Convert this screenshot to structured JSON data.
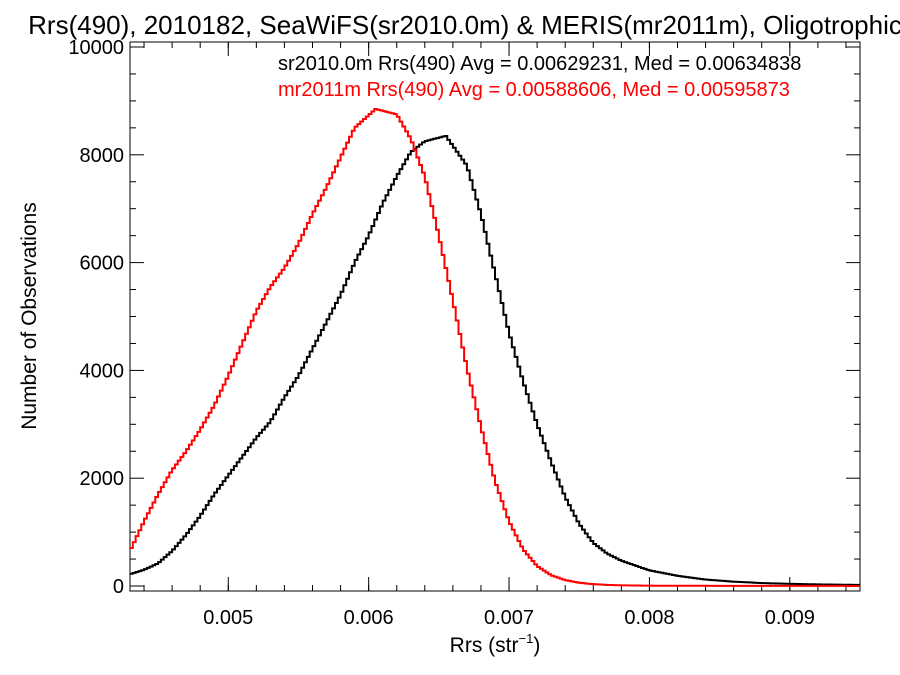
{
  "chart_data": {
    "type": "line",
    "title": "Rrs(490), 2010182, SeaWiFS(sr2010.0m) & MERIS(mr2011m), Oligotrophic",
    "xlabel": "Rrs (str",
    "xlabel_sup": "−1",
    "xlabel_close": ")",
    "ylabel": "Number of Observations",
    "xlim": [
      0.0043,
      0.0095
    ],
    "ylim": [
      0,
      10000
    ],
    "xticks": [
      {
        "value": 0.005,
        "label": "0.005"
      },
      {
        "value": 0.006,
        "label": "0.006"
      },
      {
        "value": 0.007,
        "label": "0.007"
      },
      {
        "value": 0.008,
        "label": "0.008"
      },
      {
        "value": 0.009,
        "label": "0.009"
      }
    ],
    "yticks": [
      {
        "value": 0,
        "label": "0"
      },
      {
        "value": 2000,
        "label": "2000"
      },
      {
        "value": 4000,
        "label": "4000"
      },
      {
        "value": 6000,
        "label": "6000"
      },
      {
        "value": 8000,
        "label": "8000"
      },
      {
        "value": 10000,
        "label": "10000"
      }
    ],
    "grid": false,
    "series": [
      {
        "name": "sr2010.0m",
        "color": "#000000",
        "legend_label": "sr2010.0m Rrs(490) Avg = 0.00629231, Med = 0.00634838",
        "points": [
          [
            0.0043,
            220
          ],
          [
            0.0044,
            300
          ],
          [
            0.0045,
            420
          ],
          [
            0.0046,
            650
          ],
          [
            0.0047,
            950
          ],
          [
            0.0048,
            1300
          ],
          [
            0.0049,
            1700
          ],
          [
            0.005,
            2050
          ],
          [
            0.0051,
            2400
          ],
          [
            0.0052,
            2750
          ],
          [
            0.0053,
            3050
          ],
          [
            0.0054,
            3500
          ],
          [
            0.0055,
            3900
          ],
          [
            0.0056,
            4400
          ],
          [
            0.0057,
            4900
          ],
          [
            0.0058,
            5400
          ],
          [
            0.0059,
            6000
          ],
          [
            0.006,
            6500
          ],
          [
            0.0061,
            7100
          ],
          [
            0.0062,
            7600
          ],
          [
            0.0063,
            8050
          ],
          [
            0.0064,
            8250
          ],
          [
            0.00655,
            8350
          ],
          [
            0.0067,
            7800
          ],
          [
            0.0068,
            6900
          ],
          [
            0.0069,
            5800
          ],
          [
            0.007,
            4700
          ],
          [
            0.0071,
            3800
          ],
          [
            0.0072,
            3000
          ],
          [
            0.0073,
            2300
          ],
          [
            0.0074,
            1650
          ],
          [
            0.0075,
            1150
          ],
          [
            0.0076,
            800
          ],
          [
            0.0077,
            600
          ],
          [
            0.0078,
            470
          ],
          [
            0.0079,
            380
          ],
          [
            0.008,
            290
          ],
          [
            0.0082,
            190
          ],
          [
            0.0084,
            120
          ],
          [
            0.0086,
            80
          ],
          [
            0.0088,
            55
          ],
          [
            0.009,
            40
          ],
          [
            0.0092,
            30
          ],
          [
            0.0095,
            20
          ]
        ]
      },
      {
        "name": "mr2011m",
        "color": "#ff0000",
        "legend_label": "mr2011m Rrs(490) Avg = 0.00588606, Med = 0.00595873",
        "points": [
          [
            0.0043,
            650
          ],
          [
            0.0044,
            1200
          ],
          [
            0.0045,
            1700
          ],
          [
            0.0046,
            2150
          ],
          [
            0.0047,
            2500
          ],
          [
            0.0048,
            2900
          ],
          [
            0.0049,
            3350
          ],
          [
            0.005,
            3900
          ],
          [
            0.0051,
            4500
          ],
          [
            0.0052,
            5100
          ],
          [
            0.0053,
            5550
          ],
          [
            0.0054,
            5900
          ],
          [
            0.0055,
            6350
          ],
          [
            0.0056,
            6900
          ],
          [
            0.0057,
            7400
          ],
          [
            0.0058,
            7950
          ],
          [
            0.0059,
            8500
          ],
          [
            0.00605,
            8850
          ],
          [
            0.0062,
            8750
          ],
          [
            0.0063,
            8300
          ],
          [
            0.0064,
            7600
          ],
          [
            0.0065,
            6500
          ],
          [
            0.0066,
            5300
          ],
          [
            0.0067,
            4050
          ],
          [
            0.0068,
            2950
          ],
          [
            0.0069,
            1950
          ],
          [
            0.007,
            1200
          ],
          [
            0.0071,
            680
          ],
          [
            0.0072,
            370
          ],
          [
            0.0073,
            200
          ],
          [
            0.0074,
            110
          ],
          [
            0.0075,
            60
          ],
          [
            0.0076,
            35
          ],
          [
            0.0077,
            20
          ],
          [
            0.0078,
            12
          ],
          [
            0.008,
            6
          ],
          [
            0.0085,
            3
          ],
          [
            0.0095,
            1
          ]
        ]
      }
    ]
  }
}
